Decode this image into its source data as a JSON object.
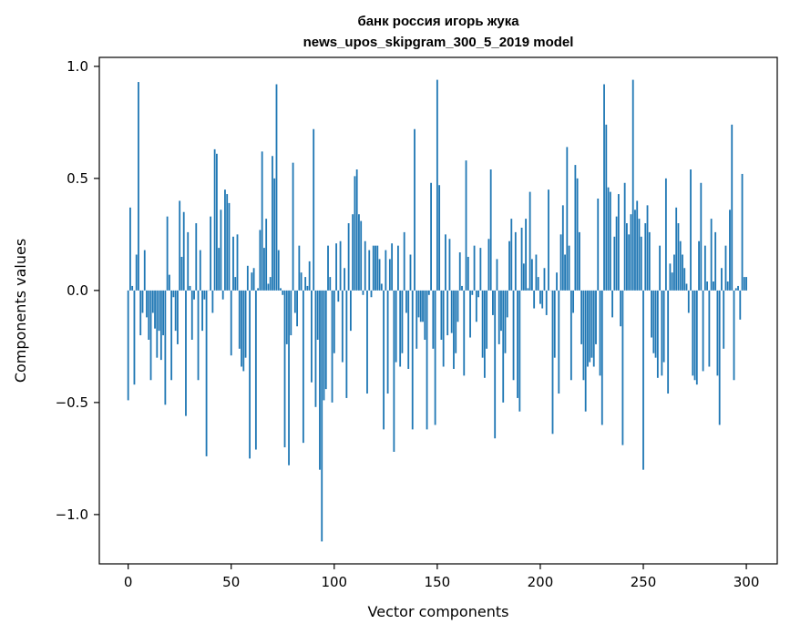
{
  "chart_data": {
    "type": "bar",
    "title_line1": "банк россия игорь жука",
    "title_line2": "news_upos_skipgram_300_5_2019 model",
    "xlabel": "Vector components",
    "ylabel": "Components values",
    "xlim": [
      -14,
      315
    ],
    "ylim": [
      -1.22,
      1.04
    ],
    "grid": false,
    "color": "#1f77b4",
    "x_ticks": [
      0,
      50,
      100,
      150,
      200,
      250,
      300
    ],
    "x_tick_labels": [
      "0",
      "50",
      "100",
      "150",
      "200",
      "250",
      "300"
    ],
    "y_ticks": [
      -1.0,
      -0.5,
      0.0,
      0.5,
      1.0
    ],
    "y_tick_labels": [
      "−1.0",
      "−0.5",
      "0.0",
      "0.5",
      "1.0"
    ],
    "values": [
      -0.49,
      0.37,
      0.02,
      -0.42,
      0.16,
      0.93,
      -0.2,
      -0.1,
      0.18,
      -0.12,
      -0.22,
      -0.4,
      -0.1,
      -0.17,
      -0.3,
      -0.18,
      -0.31,
      -0.2,
      -0.51,
      0.33,
      0.07,
      -0.4,
      -0.03,
      -0.18,
      -0.24,
      0.4,
      0.15,
      0.35,
      -0.56,
      0.26,
      0.02,
      -0.22,
      -0.04,
      0.3,
      -0.4,
      0.18,
      -0.18,
      -0.04,
      -0.74,
      0.0,
      0.33,
      -0.1,
      0.63,
      0.61,
      0.19,
      0.36,
      -0.04,
      0.45,
      0.43,
      0.39,
      -0.29,
      0.24,
      0.06,
      0.25,
      -0.26,
      -0.34,
      -0.36,
      -0.3,
      0.11,
      -0.75,
      0.08,
      0.1,
      -0.71,
      0.01,
      0.27,
      0.62,
      0.19,
      0.32,
      0.03,
      0.06,
      0.6,
      0.5,
      0.92,
      0.18,
      0.01,
      -0.02,
      -0.7,
      -0.24,
      -0.78,
      -0.2,
      0.57,
      -0.1,
      -0.16,
      0.2,
      0.08,
      -0.68,
      0.06,
      0.02,
      0.13,
      -0.41,
      0.72,
      -0.52,
      -0.22,
      -0.8,
      -1.12,
      -0.49,
      -0.44,
      0.2,
      0.06,
      -0.5,
      -0.28,
      0.21,
      -0.05,
      0.22,
      -0.32,
      0.1,
      -0.48,
      0.3,
      -0.18,
      0.34,
      0.51,
      0.54,
      0.34,
      0.31,
      -0.02,
      0.22,
      -0.46,
      0.18,
      -0.03,
      0.2,
      0.2,
      0.2,
      0.14,
      0.03,
      -0.62,
      0.18,
      -0.46,
      0.14,
      0.21,
      -0.72,
      -0.32,
      0.2,
      -0.34,
      -0.28,
      0.26,
      -0.1,
      -0.35,
      0.16,
      -0.62,
      0.72,
      -0.26,
      -0.12,
      -0.14,
      -0.14,
      -0.22,
      -0.62,
      -0.02,
      0.48,
      -0.26,
      -0.6,
      0.94,
      0.47,
      -0.22,
      -0.34,
      0.25,
      -0.2,
      0.23,
      -0.19,
      -0.35,
      -0.28,
      -0.14,
      0.17,
      0.02,
      -0.38,
      0.58,
      0.15,
      -0.21,
      -0.02,
      0.2,
      -0.14,
      -0.03,
      0.19,
      -0.3,
      -0.39,
      -0.26,
      0.23,
      0.54,
      -0.11,
      -0.66,
      0.14,
      -0.24,
      -0.18,
      -0.5,
      -0.28,
      -0.12,
      0.22,
      0.32,
      -0.4,
      0.26,
      -0.48,
      -0.54,
      0.28,
      0.12,
      0.32,
      0.01,
      0.44,
      0.14,
      -0.08,
      0.16,
      0.06,
      -0.06,
      -0.08,
      0.1,
      -0.11,
      0.45,
      0.0,
      -0.64,
      -0.3,
      0.08,
      -0.46,
      0.25,
      0.38,
      0.16,
      0.64,
      0.2,
      -0.4,
      -0.1,
      0.56,
      0.5,
      0.26,
      -0.24,
      -0.4,
      -0.54,
      -0.34,
      -0.32,
      -0.3,
      -0.34,
      -0.24,
      0.41,
      -0.38,
      -0.6,
      0.92,
      0.74,
      0.46,
      0.44,
      -0.12,
      0.24,
      0.33,
      0.43,
      -0.16,
      -0.69,
      0.48,
      0.3,
      0.25,
      0.34,
      0.94,
      0.36,
      0.4,
      0.32,
      0.24,
      -0.8,
      0.3,
      0.38,
      0.26,
      -0.21,
      -0.28,
      -0.3,
      -0.39,
      0.2,
      -0.38,
      -0.32,
      0.5,
      -0.46,
      0.12,
      0.08,
      0.16,
      0.37,
      0.3,
      0.22,
      0.16,
      0.1,
      0.03,
      -0.1,
      0.54,
      -0.38,
      -0.4,
      -0.42,
      0.22,
      0.48,
      -0.36,
      0.2,
      0.04,
      -0.34,
      0.32,
      0.04,
      0.26,
      -0.38,
      -0.6,
      0.1,
      -0.26,
      0.2,
      0.04,
      0.36,
      0.74,
      -0.4,
      0.01,
      0.02,
      -0.13,
      0.52,
      0.06,
      0.06
    ]
  }
}
